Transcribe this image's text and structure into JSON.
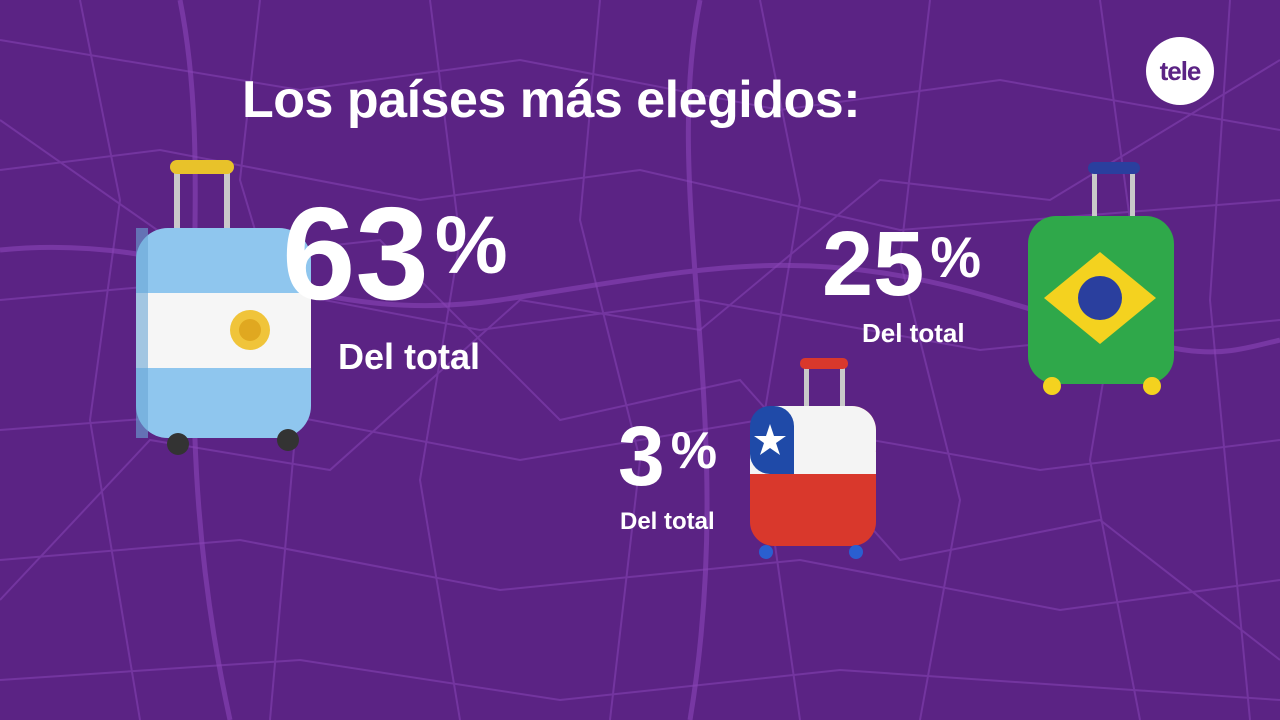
{
  "header": {
    "title": "Los países más elegidos:",
    "logo_text": "tele"
  },
  "stats": [
    {
      "country": "Argentina",
      "value": "63",
      "percent_sign": "%",
      "label": "Del total",
      "bag_icon": "suitcase-argentina-flag-icon"
    },
    {
      "country": "Brasil",
      "value": "25",
      "percent_sign": "%",
      "label": "Del total",
      "bag_icon": "suitcase-brazil-flag-icon"
    },
    {
      "country": "Chile",
      "value": "3",
      "percent_sign": "%",
      "label": "Del total",
      "bag_icon": "suitcase-chile-flag-icon"
    }
  ],
  "colors": {
    "background": "#5b2384",
    "map_lines": "#7a3aa8",
    "text": "#ffffff"
  }
}
